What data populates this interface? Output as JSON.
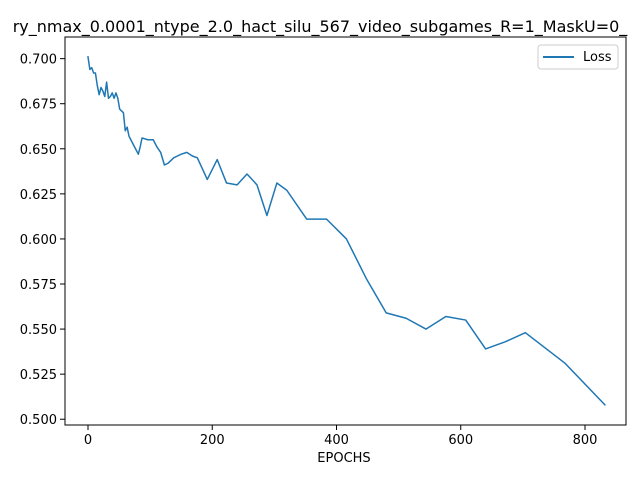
{
  "chart_data": {
    "type": "line",
    "title": "ry_nmax_0.0001_ntype_2.0_hact_silu_567_video_subgames_R=1_MaskU=0_",
    "xlabel": "EPOCHS",
    "ylabel": "",
    "xlim": [
      -37,
      866
    ],
    "ylim": [
      0.4968,
      0.712
    ],
    "xticks": [
      0,
      200,
      400,
      600,
      800
    ],
    "xtick_labels": [
      "0",
      "200",
      "400",
      "600",
      "800"
    ],
    "yticks": [
      0.5,
      0.525,
      0.55,
      0.575,
      0.6,
      0.625,
      0.65,
      0.675,
      0.7
    ],
    "ytick_labels": [
      "0.500",
      "0.525",
      "0.550",
      "0.575",
      "0.600",
      "0.625",
      "0.650",
      "0.675",
      "0.700"
    ],
    "grid": false,
    "legend_position": "top-right",
    "series": [
      {
        "name": "Loss",
        "color": "#1f77b4",
        "x": [
          0,
          3,
          6,
          9,
          12,
          15,
          18,
          21,
          24,
          27,
          30,
          33,
          36,
          39,
          42,
          45,
          48,
          51,
          54,
          57,
          60,
          63,
          66,
          69,
          72,
          75,
          78,
          81,
          84,
          87,
          96,
          105,
          111,
          117,
          123,
          129,
          138,
          144,
          150,
          159,
          168,
          176,
          192,
          208,
          223,
          240,
          256,
          272,
          288,
          304,
          320,
          352,
          384,
          416,
          448,
          480,
          512,
          544,
          576,
          608,
          640,
          672,
          704,
          768,
          832
        ],
        "y": [
          0.701,
          0.694,
          0.695,
          0.692,
          0.692,
          0.685,
          0.68,
          0.684,
          0.682,
          0.679,
          0.687,
          0.678,
          0.679,
          0.681,
          0.678,
          0.681,
          0.678,
          0.672,
          0.671,
          0.67,
          0.66,
          0.662,
          0.657,
          0.655,
          0.653,
          0.651,
          0.649,
          0.647,
          0.651,
          0.656,
          0.655,
          0.655,
          0.651,
          0.648,
          0.641,
          0.642,
          0.645,
          0.646,
          0.647,
          0.648,
          0.646,
          0.645,
          0.633,
          0.644,
          0.631,
          0.63,
          0.636,
          0.63,
          0.613,
          0.631,
          0.627,
          0.611,
          0.611,
          0.6,
          0.578,
          0.559,
          0.556,
          0.55,
          0.557,
          0.555,
          0.539,
          0.543,
          0.548,
          0.531,
          0.508
        ]
      }
    ]
  }
}
